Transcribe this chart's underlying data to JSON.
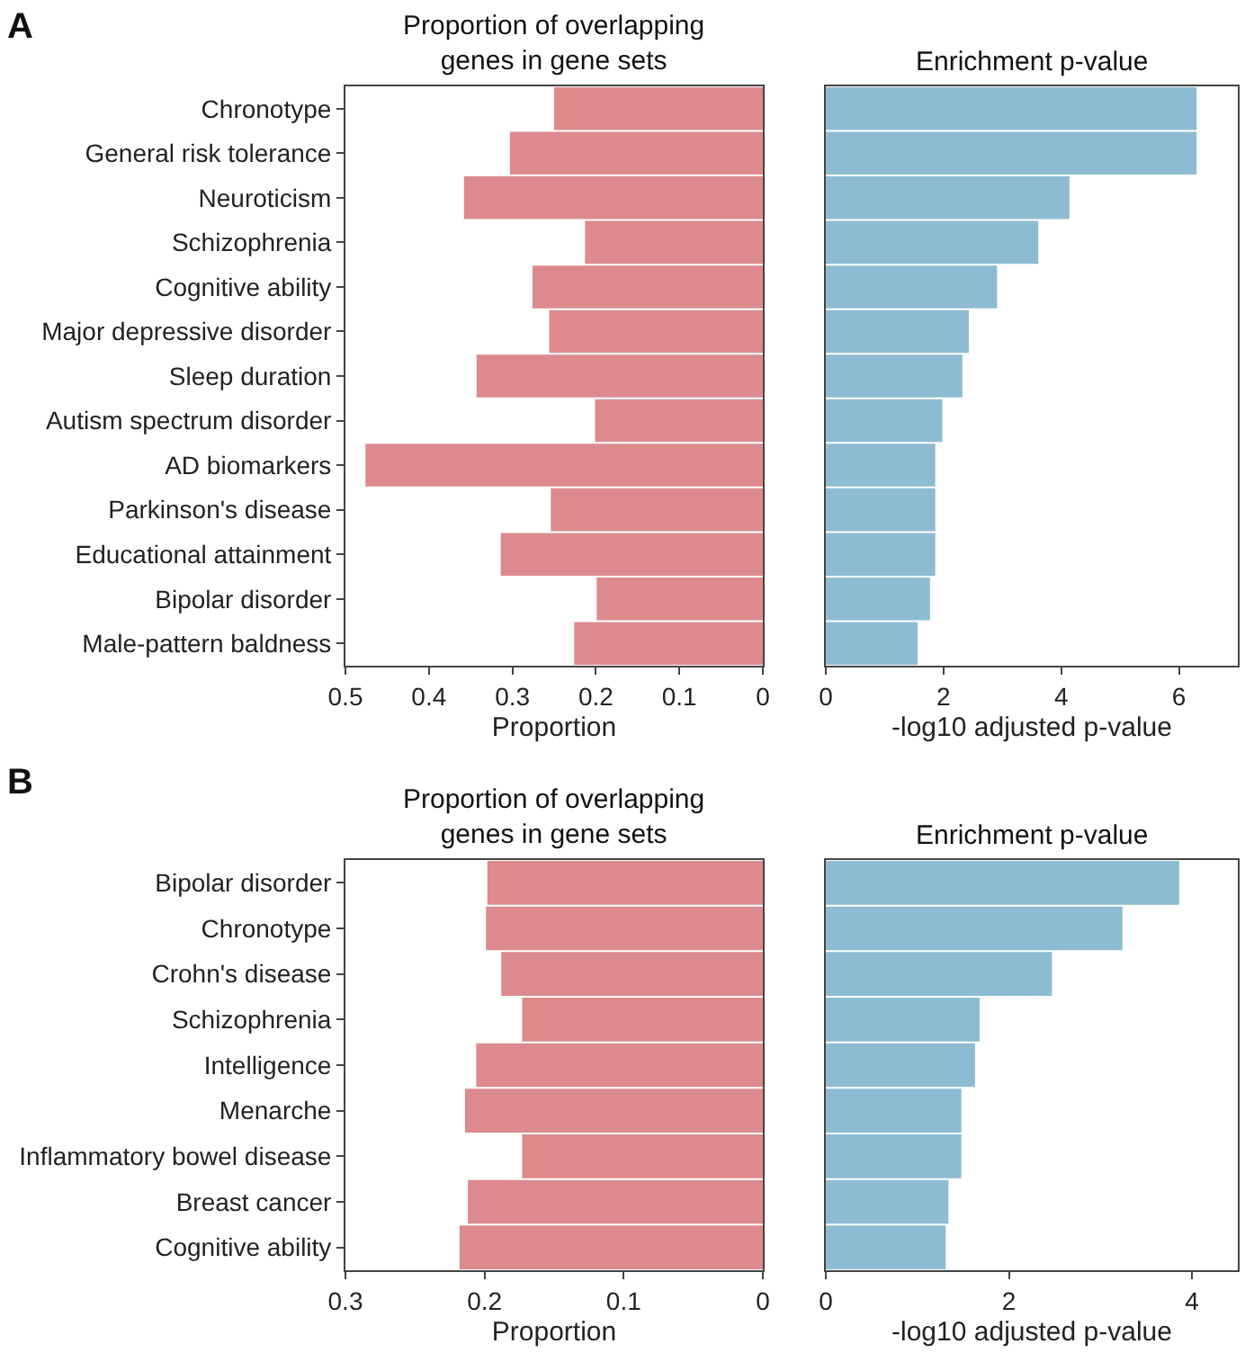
{
  "chart_data": [
    {
      "type": "bar",
      "orientation": "horizontal",
      "title": "Proportion of overlapping\ngenes in gene sets",
      "xlabel": "Proportion",
      "annotations": [
        "A"
      ],
      "categories": [
        "Chronotype",
        "General risk tolerance",
        "Neuroticism",
        "Schizophrenia",
        "Cognitive ability",
        "Major depressive disorder",
        "Sleep duration",
        "Autism spectrum disorder",
        "AD biomarkers",
        "Parkinson's disease",
        "Educational attainment",
        "Bipolar disorder",
        "Male-pattern baldness"
      ],
      "values": [
        0.25,
        0.303,
        0.358,
        0.213,
        0.276,
        0.256,
        0.343,
        0.201,
        0.476,
        0.254,
        0.314,
        0.199,
        0.226
      ],
      "color": "#dd8a8e",
      "xlim": [
        0.5,
        0
      ],
      "xticks": [
        0.5,
        0.4,
        0.3,
        0.2,
        0.1,
        0
      ],
      "grid": false
    },
    {
      "type": "bar",
      "orientation": "horizontal",
      "title": "Enrichment p-value",
      "xlabel": "-log10 adjusted p-value",
      "tick_labels": "x",
      "categories": [
        null,
        null,
        null,
        null,
        null,
        null,
        null,
        null,
        null,
        null,
        null,
        null,
        null
      ],
      "values": [
        6.3,
        6.3,
        4.14,
        3.61,
        2.91,
        2.43,
        2.32,
        1.98,
        1.86,
        1.86,
        1.86,
        1.77,
        1.56
      ],
      "color": "#8dbcd2",
      "xlim": [
        0,
        7
      ],
      "xticks": [
        0,
        2,
        4,
        6
      ],
      "grid": false
    },
    {
      "type": "bar",
      "orientation": "horizontal",
      "title": "Proportion of overlapping\ngenes in gene sets",
      "xlabel": "Proportion",
      "annotations": [
        "B"
      ],
      "categories": [
        "Bipolar disorder",
        "Chronotype",
        "Crohn's disease",
        "Schizophrenia",
        "Intelligence",
        "Menarche",
        "Inflammatory bowel disease",
        "Breast cancer",
        "Cognitive ability"
      ],
      "values": [
        0.198,
        0.199,
        0.188,
        0.173,
        0.206,
        0.214,
        0.173,
        0.212,
        0.218
      ],
      "color": "#dd8a8e",
      "xlim": [
        0.3,
        0
      ],
      "xticks": [
        0.3,
        0.2,
        0.1,
        0
      ],
      "grid": false
    },
    {
      "type": "bar",
      "orientation": "horizontal",
      "title": "Enrichment p-value",
      "xlabel": "-log10 adjusted p-value",
      "tick_labels": "x",
      "categories": [
        null,
        null,
        null,
        null,
        null,
        null,
        null,
        null,
        null
      ],
      "values": [
        3.86,
        3.24,
        2.47,
        1.68,
        1.63,
        1.48,
        1.48,
        1.34,
        1.31
      ],
      "color": "#8dbcd2",
      "xlim": [
        0,
        4.5
      ],
      "xticks": [
        0,
        2,
        4
      ],
      "grid": false
    }
  ]
}
